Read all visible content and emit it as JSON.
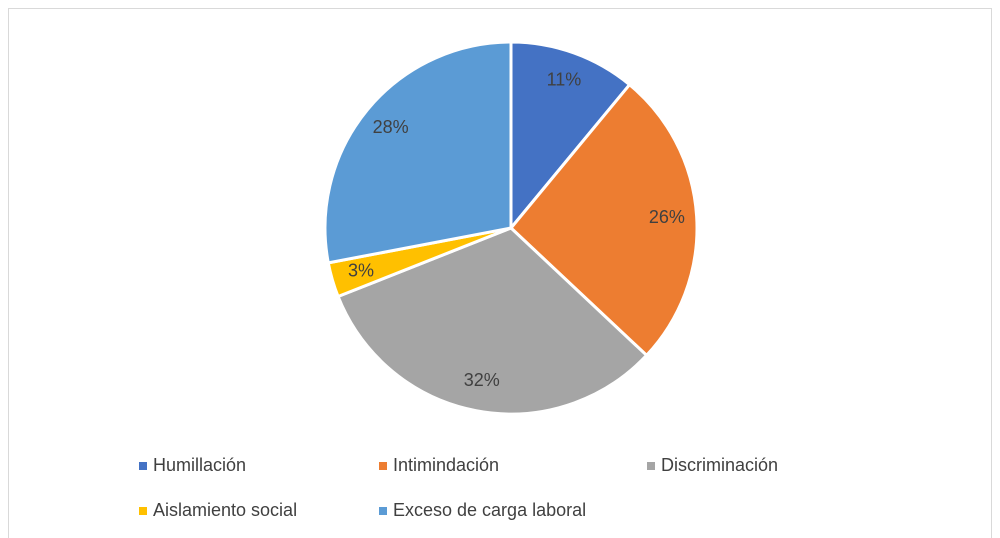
{
  "chart_data": {
    "type": "pie",
    "categories": [
      "Humillación",
      "Intimindación",
      "Discriminación",
      "Aislamiento social",
      "Exceso de carga laboral"
    ],
    "values": [
      11,
      26,
      32,
      3,
      28
    ],
    "value_labels": [
      "11%",
      "26%",
      "32%",
      "3%",
      "28%"
    ],
    "colors": [
      "#4472c4",
      "#ed7d31",
      "#a5a5a5",
      "#ffc000",
      "#5b9bd5"
    ],
    "legend": "bottom"
  }
}
